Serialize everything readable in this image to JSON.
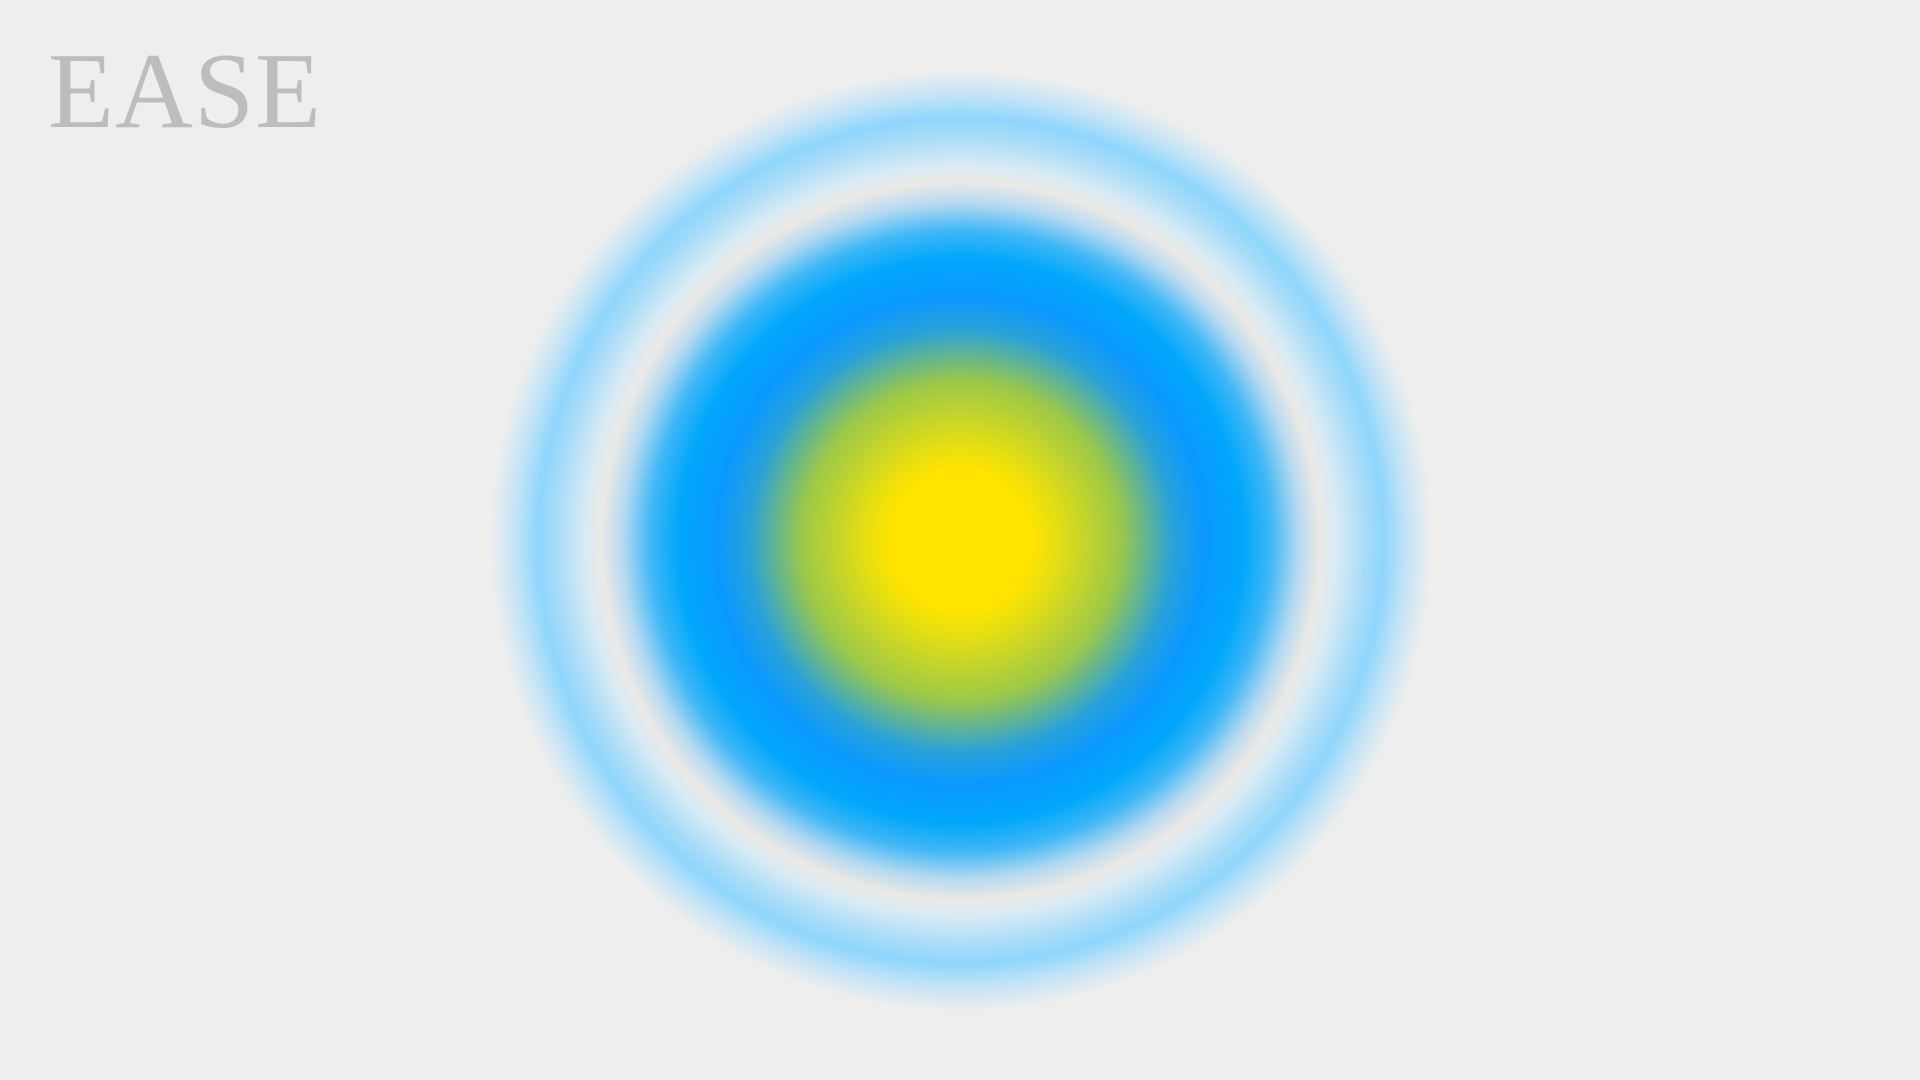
{
  "brand": {
    "title": "EASE"
  },
  "colors": {
    "background": "#eeeeee",
    "brand_text": "#bdbdbd",
    "orb_core": "#ffe400",
    "orb_mid": "#0a98ff",
    "orb_outer": "#8fd6fd"
  }
}
